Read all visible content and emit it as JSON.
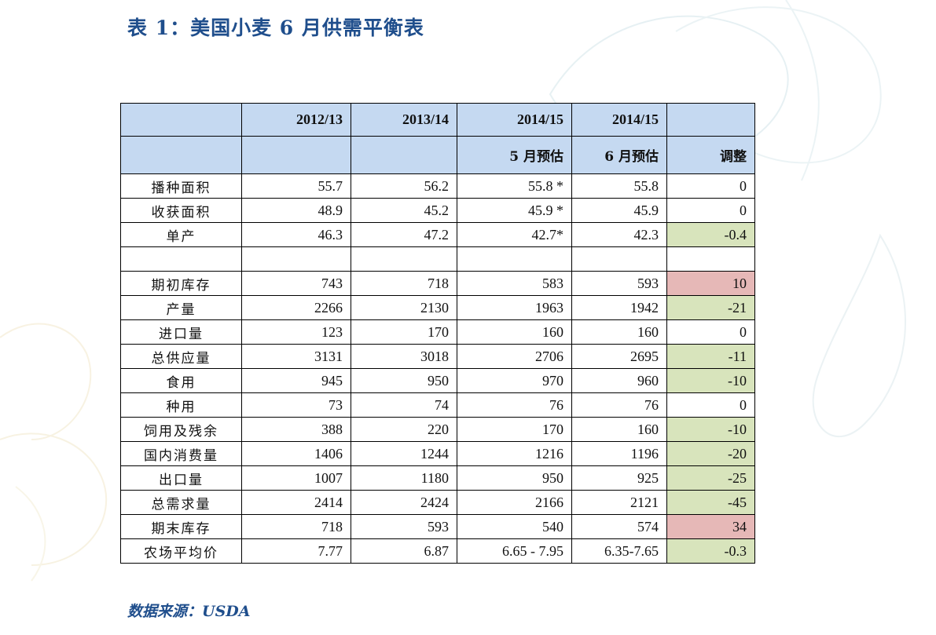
{
  "title": "表 1：美国小麦 6 月供需平衡表",
  "source": "数据来源：USDA",
  "colors": {
    "header_bg": "#c5d9f1",
    "decrease_bg": "#d8e4bc",
    "increase_bg": "#e6b8b7",
    "title_color": "#1f4e8c"
  },
  "table": {
    "header_row1": [
      "",
      "2012/13",
      "2013/14",
      "2014/15",
      "2014/15",
      ""
    ],
    "header_row2": [
      "",
      "",
      "",
      "5 月预估",
      "6 月预估",
      "调整"
    ],
    "rows": [
      {
        "label": "播种面积",
        "y1213": "55.7",
        "y1314": "56.2",
        "may": "55.8 *",
        "june": "55.8",
        "adj": "0",
        "adj_kind": "none"
      },
      {
        "label": "收获面积",
        "y1213": "48.9",
        "y1314": "45.2",
        "may": "45.9 *",
        "june": "45.9",
        "adj": "0",
        "adj_kind": "none"
      },
      {
        "label": "单产",
        "y1213": "46.3",
        "y1314": "47.2",
        "may": "42.7*",
        "june": "42.3",
        "adj": "-0.4",
        "adj_kind": "decrease"
      },
      {
        "label": "",
        "y1213": "",
        "y1314": "",
        "may": "",
        "june": "",
        "adj": "",
        "adj_kind": "none"
      },
      {
        "label": "期初库存",
        "y1213": "743",
        "y1314": "718",
        "may": "583",
        "june": "593",
        "adj": "10",
        "adj_kind": "increase"
      },
      {
        "label": "产量",
        "y1213": "2266",
        "y1314": "2130",
        "may": "1963",
        "june": "1942",
        "adj": "-21",
        "adj_kind": "decrease"
      },
      {
        "label": "进口量",
        "y1213": "123",
        "y1314": "170",
        "may": "160",
        "june": "160",
        "adj": "0",
        "adj_kind": "none"
      },
      {
        "label": "总供应量",
        "y1213": "3131",
        "y1314": "3018",
        "may": "2706",
        "june": "2695",
        "adj": "-11",
        "adj_kind": "decrease"
      },
      {
        "label": "食用",
        "y1213": "945",
        "y1314": "950",
        "may": "970",
        "june": "960",
        "adj": "-10",
        "adj_kind": "decrease"
      },
      {
        "label": "种用",
        "y1213": "73",
        "y1314": "74",
        "may": "76",
        "june": "76",
        "adj": "0",
        "adj_kind": "none"
      },
      {
        "label": "饲用及残余",
        "y1213": "388",
        "y1314": "220",
        "may": "170",
        "june": "160",
        "adj": "-10",
        "adj_kind": "decrease"
      },
      {
        "label": "国内消费量",
        "y1213": "1406",
        "y1314": "1244",
        "may": "1216",
        "june": "1196",
        "adj": "-20",
        "adj_kind": "decrease"
      },
      {
        "label": "出口量",
        "y1213": "1007",
        "y1314": "1180",
        "may": "950",
        "june": "925",
        "adj": "-25",
        "adj_kind": "decrease"
      },
      {
        "label": "总需求量",
        "y1213": "2414",
        "y1314": "2424",
        "may": "2166",
        "june": "2121",
        "adj": "-45",
        "adj_kind": "decrease"
      },
      {
        "label": "期末库存",
        "y1213": "718",
        "y1314": "593",
        "may": "540",
        "june": "574",
        "adj": "34",
        "adj_kind": "increase"
      },
      {
        "label": "农场平均价",
        "y1213": "7.77",
        "y1314": "6.87",
        "may": "6.65 - 7.95",
        "june": "6.35-7.65",
        "adj": "-0.3",
        "adj_kind": "decrease"
      }
    ]
  }
}
